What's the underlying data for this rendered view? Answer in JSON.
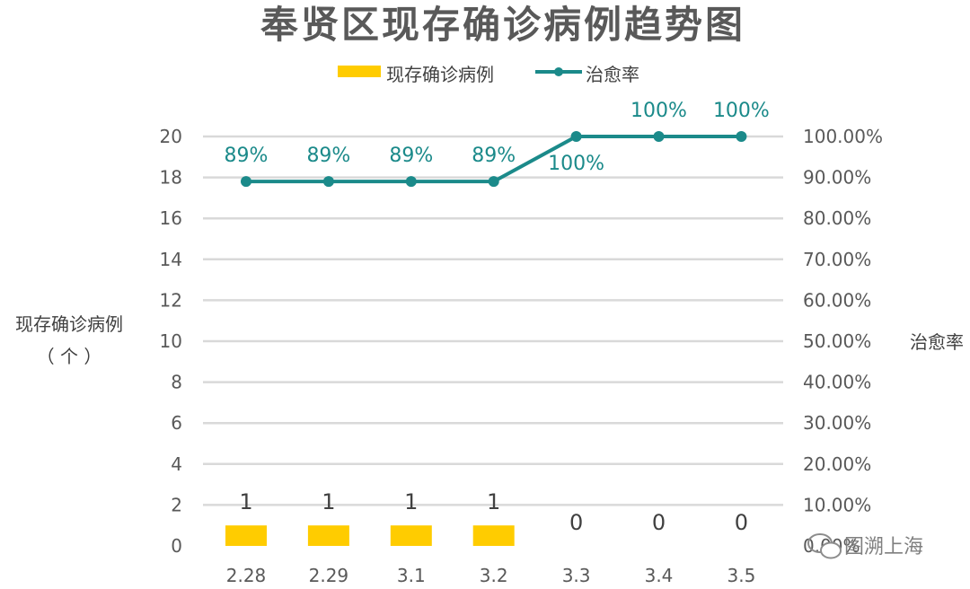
{
  "chart_data": {
    "type": "bar+line",
    "title": "奉贤区现存确诊病例趋势图",
    "categories": [
      "2.28",
      "2.29",
      "3.1",
      "3.2",
      "3.3",
      "3.4",
      "3.5"
    ],
    "series": [
      {
        "name": "现存确诊病例",
        "type": "bar",
        "axis": "left",
        "values": [
          1,
          1,
          1,
          1,
          0,
          0,
          0
        ],
        "labels": [
          "1",
          "1",
          "1",
          "1",
          "0",
          "0",
          "0"
        ]
      },
      {
        "name": "治愈率",
        "type": "line",
        "axis": "right",
        "values": [
          0.89,
          0.89,
          0.89,
          0.89,
          1.0,
          1.0,
          1.0
        ],
        "labels": [
          "89%",
          "89%",
          "89%",
          "89%",
          "100%",
          "100%",
          "100%"
        ]
      }
    ],
    "y_left": {
      "label_line1": "现存确诊病例",
      "label_line2": "（ 个 ）",
      "ticks": [
        "0",
        "2",
        "4",
        "6",
        "8",
        "10",
        "12",
        "14",
        "16",
        "18",
        "20"
      ],
      "range": [
        0,
        20
      ]
    },
    "y_right": {
      "label": "治愈率",
      "ticks": [
        "0.00%",
        "10.00%",
        "20.00%",
        "30.00%",
        "40.00%",
        "50.00%",
        "60.00%",
        "70.00%",
        "80.00%",
        "90.00%",
        "100.00%"
      ],
      "range": [
        0,
        1
      ]
    },
    "grid": true,
    "legend_position": "top-center",
    "colors": {
      "bar": "#ffcc00",
      "line": "#1b8a8a",
      "grid": "#d9d9d9"
    }
  },
  "watermark": {
    "text": "图溯上海"
  }
}
